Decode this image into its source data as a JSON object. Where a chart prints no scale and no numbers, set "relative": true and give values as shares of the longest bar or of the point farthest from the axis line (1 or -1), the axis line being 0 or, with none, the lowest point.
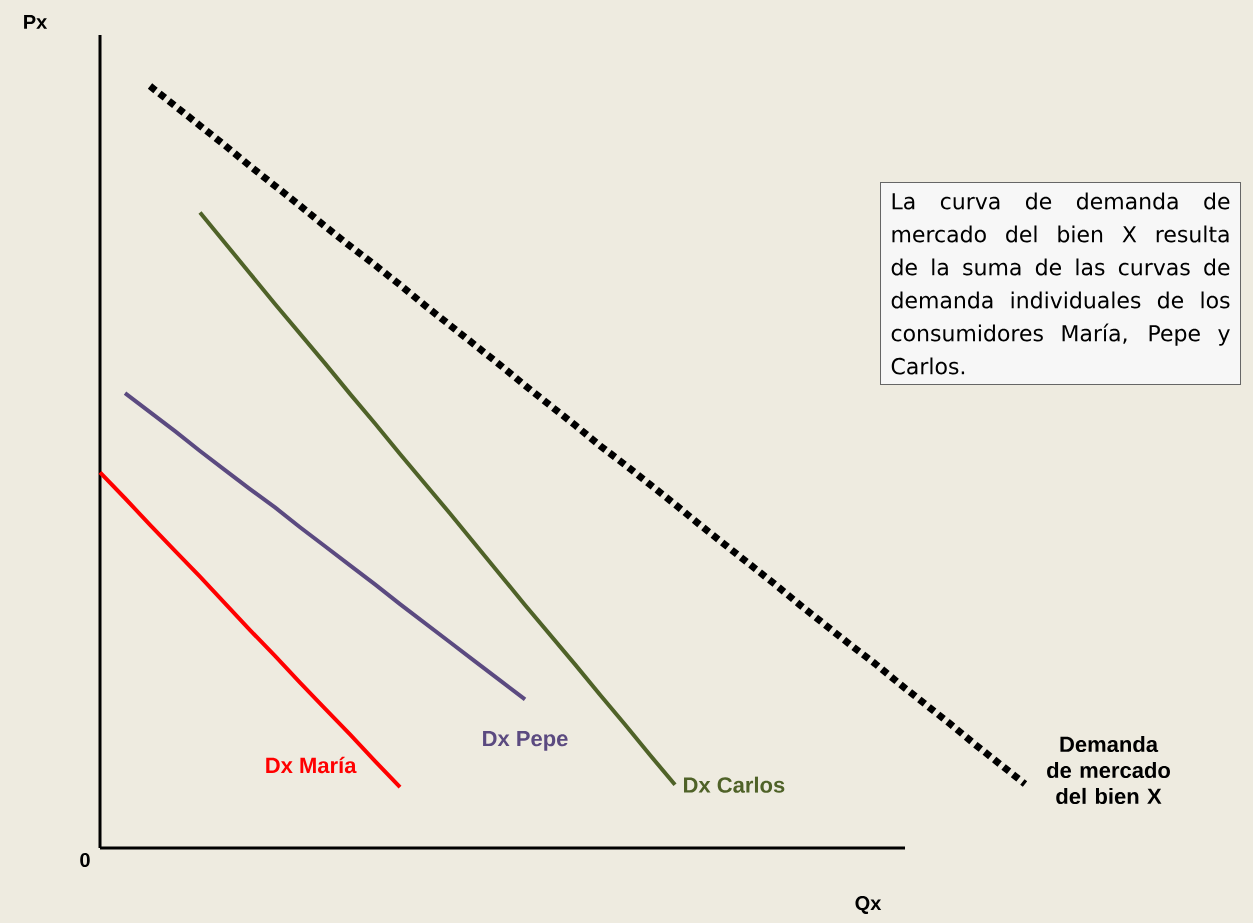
{
  "chart_data": {
    "type": "line",
    "relative": true,
    "xlabel": "Qx",
    "ylabel": "Px",
    "marker": "none",
    "categories": [
      null,
      null,
      null,
      null,
      null,
      null,
      null,
      null,
      null,
      null,
      null,
      null,
      null,
      null,
      null,
      null,
      null,
      null,
      null,
      null,
      null,
      null,
      null,
      null,
      null,
      null,
      null,
      null,
      null,
      null,
      null,
      null,
      null,
      null,
      null,
      null,
      null,
      null
    ],
    "annotations": [
      "0",
      "La curva de demanda de mercado del bien X resulta de la suma de las curvas de demanda individuales de los consumidores María, Pepe y Carlos."
    ],
    "series": [
      {
        "name": "Dx María",
        "color": "#ff0000",
        "line_style": "solid",
        "values": [
          0.493,
          0.459,
          0.424,
          0.39,
          0.356,
          0.321,
          0.286,
          0.252,
          0.217,
          0.183,
          0.149,
          0.114,
          0.08,
          null,
          null,
          null,
          null,
          null,
          null,
          null,
          null,
          null,
          null,
          null,
          null,
          null,
          null,
          null,
          null,
          null,
          null,
          null,
          null,
          null,
          null,
          null,
          null,
          null
        ]
      },
      {
        "name": "Dx Pepe",
        "color": "#5b4a80",
        "line_style": "solid",
        "values": [
          null,
          0.597,
          0.572,
          0.547,
          0.521,
          0.496,
          0.471,
          0.447,
          0.421,
          0.396,
          0.371,
          0.346,
          0.32,
          0.295,
          0.27,
          0.245,
          0.22,
          0.195,
          null,
          null,
          null,
          null,
          null,
          null,
          null,
          null,
          null,
          null,
          null,
          null,
          null,
          null,
          null,
          null,
          null,
          null,
          null,
          null
        ]
      },
      {
        "name": "Dx Carlos",
        "color": "#4f6228",
        "line_style": "solid",
        "values": [
          null,
          null,
          null,
          null,
          0.834,
          0.794,
          0.754,
          0.714,
          0.675,
          0.636,
          0.596,
          0.557,
          0.517,
          0.478,
          0.439,
          0.399,
          0.359,
          0.319,
          0.28,
          0.241,
          0.201,
          0.162,
          0.122,
          0.083,
          null,
          null,
          null,
          null,
          null,
          null,
          null,
          null,
          null,
          null,
          null,
          null,
          null,
          null
        ]
      },
      {
        "name": "Demanda de mercado del bien X",
        "color": "#000000",
        "line_style": "dotted",
        "values": [
          null,
          null,
          1.0,
          0.974,
          0.948,
          0.922,
          0.895,
          0.869,
          0.843,
          0.816,
          0.79,
          0.765,
          0.739,
          0.712,
          0.686,
          0.66,
          0.634,
          0.607,
          0.581,
          0.555,
          0.528,
          0.503,
          0.477,
          0.451,
          0.424,
          0.398,
          0.372,
          0.346,
          0.319,
          0.293,
          0.267,
          0.242,
          0.215,
          0.189,
          0.163,
          0.136,
          0.11,
          0.084
        ]
      }
    ]
  }
}
